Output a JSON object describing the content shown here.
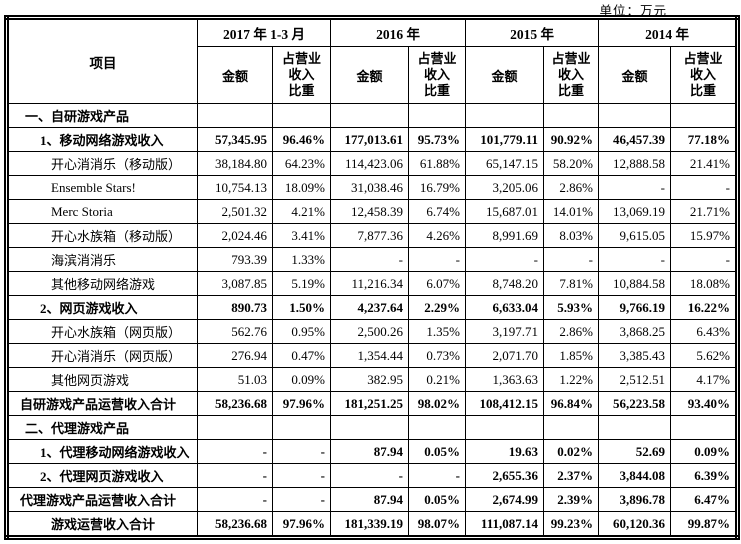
{
  "unit_label": "单位：万元",
  "table": {
    "item_header": "项目",
    "amount_header": "金额",
    "pct_header": "占营业\n收入\n比重",
    "year_headers": [
      "2017 年 1-3 月",
      "2016 年",
      "2015 年",
      "2014 年"
    ],
    "rows": [
      {
        "label": "一、自研游戏产品",
        "indent": 1,
        "bold": true,
        "center": false,
        "cells": [
          "",
          "",
          "",
          "",
          "",
          "",
          "",
          ""
        ]
      },
      {
        "label": "1、移动网络游戏收入",
        "indent": 2,
        "bold": true,
        "center": false,
        "cells": [
          "57,345.95",
          "96.46%",
          "177,013.61",
          "95.73%",
          "101,779.11",
          "90.92%",
          "46,457.39",
          "77.18%"
        ]
      },
      {
        "label": "开心消消乐（移动版）",
        "indent": 3,
        "bold": false,
        "center": false,
        "cells": [
          "38,184.80",
          "64.23%",
          "114,423.06",
          "61.88%",
          "65,147.15",
          "58.20%",
          "12,888.58",
          "21.41%"
        ]
      },
      {
        "label": "Ensemble Stars!",
        "indent": 3,
        "bold": false,
        "center": false,
        "cells": [
          "10,754.13",
          "18.09%",
          "31,038.46",
          "16.79%",
          "3,205.06",
          "2.86%",
          "-",
          "-"
        ]
      },
      {
        "label": "Merc Storia",
        "indent": 3,
        "bold": false,
        "center": false,
        "cells": [
          "2,501.32",
          "4.21%",
          "12,458.39",
          "6.74%",
          "15,687.01",
          "14.01%",
          "13,069.19",
          "21.71%"
        ]
      },
      {
        "label": "开心水族箱（移动版）",
        "indent": 3,
        "bold": false,
        "center": false,
        "cells": [
          "2,024.46",
          "3.41%",
          "7,877.36",
          "4.26%",
          "8,991.69",
          "8.03%",
          "9,615.05",
          "15.97%"
        ]
      },
      {
        "label": "海滨消消乐",
        "indent": 3,
        "bold": false,
        "center": false,
        "cells": [
          "793.39",
          "1.33%",
          "-",
          "-",
          "-",
          "-",
          "-",
          "-"
        ]
      },
      {
        "label": "其他移动网络游戏",
        "indent": 3,
        "bold": false,
        "center": false,
        "cells": [
          "3,087.85",
          "5.19%",
          "11,216.34",
          "6.07%",
          "8,748.20",
          "7.81%",
          "10,884.58",
          "18.08%"
        ]
      },
      {
        "label": "2、网页游戏收入",
        "indent": 2,
        "bold": true,
        "center": false,
        "cells": [
          "890.73",
          "1.50%",
          "4,237.64",
          "2.29%",
          "6,633.04",
          "5.93%",
          "9,766.19",
          "16.22%"
        ]
      },
      {
        "label": "开心水族箱（网页版）",
        "indent": 3,
        "bold": false,
        "center": false,
        "cells": [
          "562.76",
          "0.95%",
          "2,500.26",
          "1.35%",
          "3,197.71",
          "2.86%",
          "3,868.25",
          "6.43%"
        ]
      },
      {
        "label": "开心消消乐（网页版）",
        "indent": 3,
        "bold": false,
        "center": false,
        "cells": [
          "276.94",
          "0.47%",
          "1,354.44",
          "0.73%",
          "2,071.70",
          "1.85%",
          "3,385.43",
          "5.62%"
        ]
      },
      {
        "label": "其他网页游戏",
        "indent": 3,
        "bold": false,
        "center": false,
        "cells": [
          "51.03",
          "0.09%",
          "382.95",
          "0.21%",
          "1,363.63",
          "1.22%",
          "2,512.51",
          "4.17%"
        ]
      },
      {
        "label": "自研游戏产品运营收入合计",
        "indent": 0,
        "bold": true,
        "center": false,
        "cells": [
          "58,236.68",
          "97.96%",
          "181,251.25",
          "98.02%",
          "108,412.15",
          "96.84%",
          "56,223.58",
          "93.40%"
        ]
      },
      {
        "label": "二、代理游戏产品",
        "indent": 1,
        "bold": true,
        "center": false,
        "cells": [
          "",
          "",
          "",
          "",
          "",
          "",
          "",
          ""
        ]
      },
      {
        "label": "1、代理移动网络游戏收入",
        "indent": 2,
        "bold": true,
        "center": false,
        "cells": [
          "-",
          "-",
          "87.94",
          "0.05%",
          "19.63",
          "0.02%",
          "52.69",
          "0.09%"
        ]
      },
      {
        "label": "2、代理网页游戏收入",
        "indent": 2,
        "bold": true,
        "center": false,
        "cells": [
          "-",
          "-",
          "-",
          "-",
          "2,655.36",
          "2.37%",
          "3,844.08",
          "6.39%"
        ]
      },
      {
        "label": "代理游戏产品运营收入合计",
        "indent": 0,
        "bold": true,
        "center": false,
        "cells": [
          "-",
          "-",
          "87.94",
          "0.05%",
          "2,674.99",
          "2.39%",
          "3,896.78",
          "6.47%"
        ]
      },
      {
        "label": "游戏运营收入合计",
        "indent": 0,
        "bold": true,
        "center": true,
        "cells": [
          "58,236.68",
          "97.96%",
          "181,339.19",
          "98.07%",
          "111,087.14",
          "99.23%",
          "60,120.36",
          "99.87%"
        ]
      }
    ]
  }
}
